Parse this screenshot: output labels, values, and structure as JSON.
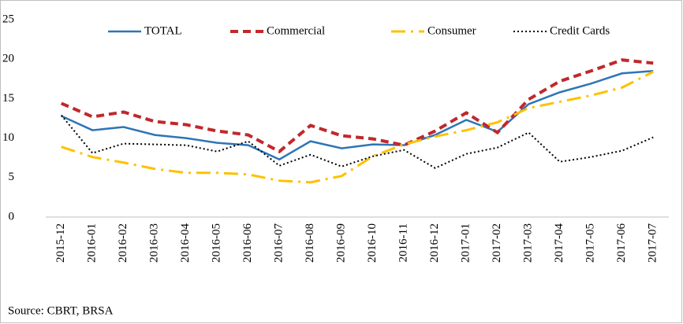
{
  "chart_data": {
    "type": "line",
    "categories": [
      "2015-12",
      "2016-01",
      "2016-02",
      "2016-03",
      "2016-04",
      "2016-05",
      "2016-06",
      "2016-07",
      "2016-08",
      "2016-09",
      "2016-10",
      "2016-11",
      "2016-12",
      "2017-01",
      "2017-02",
      "2017-03",
      "2017-04",
      "2017-05",
      "2017-06",
      "2017-07"
    ],
    "series": [
      {
        "name": "TOTAL",
        "color": "#2e75b6",
        "values": [
          12.8,
          11.0,
          11.4,
          10.4,
          10.0,
          9.4,
          9.1,
          7.3,
          9.6,
          8.7,
          9.2,
          9.1,
          10.4,
          12.3,
          10.8,
          14.3,
          15.8,
          16.9,
          18.2,
          18.5
        ]
      },
      {
        "name": "Commercial",
        "color": "#c0282d",
        "values": [
          14.4,
          12.7,
          13.3,
          12.1,
          11.7,
          10.9,
          10.4,
          8.3,
          11.6,
          10.3,
          9.9,
          9.1,
          10.9,
          13.2,
          10.7,
          14.9,
          17.2,
          18.5,
          19.9,
          19.5
        ]
      },
      {
        "name": "Consumer",
        "color": "#ffc000",
        "values": [
          8.9,
          7.6,
          6.9,
          6.1,
          5.6,
          5.6,
          5.4,
          4.6,
          4.4,
          5.2,
          7.7,
          9.2,
          10.2,
          11.0,
          12.0,
          13.8,
          14.6,
          15.4,
          16.4,
          18.4
        ]
      },
      {
        "name": "Credit Cards",
        "color": "#000000",
        "values": [
          12.9,
          8.1,
          9.3,
          9.2,
          9.1,
          8.3,
          9.6,
          6.5,
          7.9,
          6.4,
          7.7,
          8.5,
          6.2,
          8.0,
          8.8,
          10.7,
          7.0,
          7.6,
          8.4,
          10.1
        ]
      }
    ],
    "ylim": [
      0,
      25
    ],
    "yticks": [
      0,
      5,
      10,
      15,
      20,
      25
    ],
    "grid": false,
    "legend": "top",
    "note": "Source: CBRT, BRSA"
  }
}
